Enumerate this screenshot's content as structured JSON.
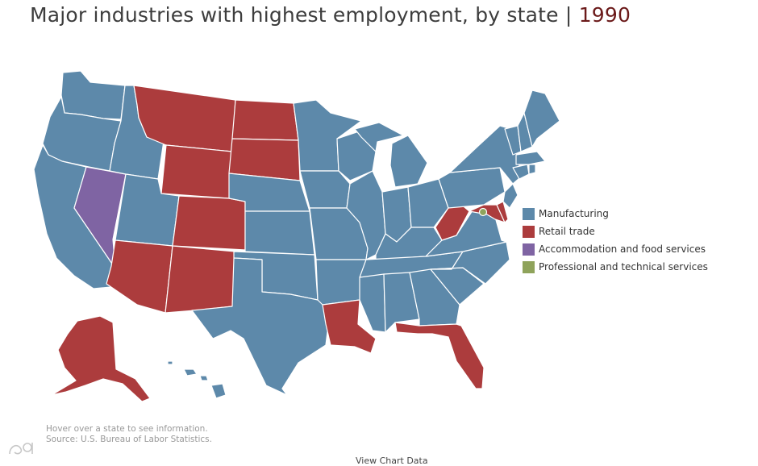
{
  "title": {
    "text": "Major industries with highest employment, by state | ",
    "year": "1990"
  },
  "colors": {
    "manufacturing": "#5d89aa",
    "retail": "#ac3c3d",
    "accommodation": "#7f64a3",
    "professional": "#8fa35b"
  },
  "legend": [
    {
      "label": "Manufacturing",
      "color": "#5d89aa"
    },
    {
      "label": "Retail trade",
      "color": "#ac3c3d"
    },
    {
      "label": "Accommodation and food services",
      "color": "#7f64a3"
    },
    {
      "label": "Professional and technical services",
      "color": "#8fa35b"
    }
  ],
  "states": {
    "manufacturing": [
      "WA",
      "OR",
      "CA",
      "ID",
      "UT",
      "NE",
      "KS",
      "OK",
      "TX",
      "MN",
      "IA",
      "MO",
      "AR",
      "WI",
      "IL",
      "MI",
      "IN",
      "OH",
      "KY",
      "TN",
      "MS",
      "AL",
      "GA",
      "SC",
      "NC",
      "VA",
      "PA",
      "NY",
      "NJ",
      "VT",
      "NH",
      "ME",
      "MA",
      "CT",
      "RI",
      "HI"
    ],
    "retail": [
      "MT",
      "ND",
      "SD",
      "WY",
      "CO",
      "AZ",
      "NM",
      "LA",
      "FL",
      "WV",
      "MD",
      "DE",
      "AK"
    ],
    "accommodation": [
      "NV"
    ],
    "professional": [
      "DC"
    ]
  },
  "notes": {
    "hover": "Hover over a state to see information.",
    "source": "Source: U.S. Bureau of Labor Statistics."
  },
  "view_data": "View Chart Data",
  "watermark": "大数据导览"
}
